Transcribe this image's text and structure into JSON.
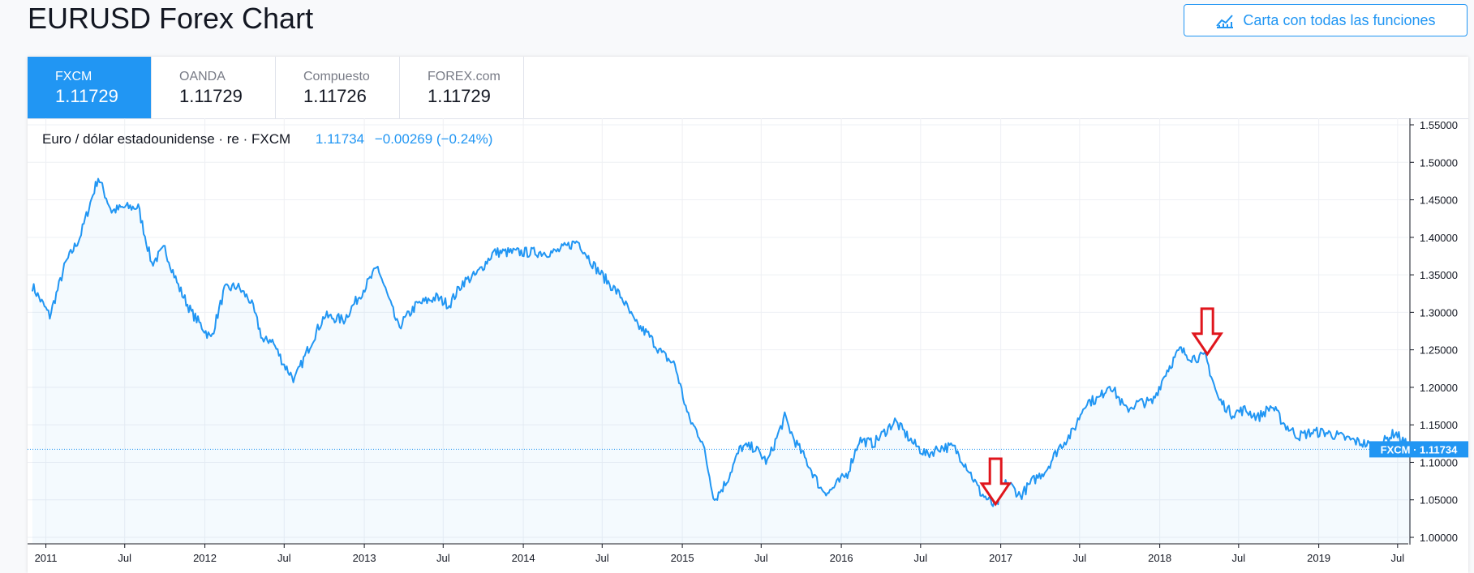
{
  "page": {
    "title": "EURUSD Forex Chart"
  },
  "toolbar": {
    "full_chart_label": "Carta con todas las funciones",
    "full_chart_icon": "chart-line-icon"
  },
  "tabs": [
    {
      "name": "FXCM",
      "value": "1.11729",
      "active": true
    },
    {
      "name": "OANDA",
      "value": "1.11729",
      "active": false
    },
    {
      "name": "Compuesto",
      "value": "1.11726",
      "active": false
    },
    {
      "name": "FOREX.com",
      "value": "1.11729",
      "active": false
    }
  ],
  "legend": {
    "symbol": "Euro / dólar estadounidense · re · FXCM",
    "price": "1.11734",
    "change": "−0.00269 (−0.24%)"
  },
  "colors": {
    "accent": "#2196f3",
    "line": "#2196f3",
    "arrow": "#e0161d",
    "text": "#131722"
  },
  "chart_data": {
    "type": "line",
    "series": [
      {
        "name": "FXCM",
        "x": [
          "2010-12-01",
          "2011-01-10",
          "2011-02-15",
          "2011-03-20",
          "2011-05-01",
          "2011-06-01",
          "2011-07-01",
          "2011-08-01",
          "2011-09-01",
          "2011-10-01",
          "2011-11-01",
          "2011-12-01",
          "2012-01-15",
          "2012-02-15",
          "2012-03-15",
          "2012-04-15",
          "2012-05-15",
          "2012-06-01",
          "2012-07-01",
          "2012-07-25",
          "2012-09-01",
          "2012-10-01",
          "2012-11-15",
          "2013-02-01",
          "2013-03-20",
          "2013-05-01",
          "2013-06-15",
          "2013-07-15",
          "2013-08-15",
          "2013-09-15",
          "2013-10-25",
          "2013-12-27",
          "2014-02-15",
          "2014-03-15",
          "2014-05-06",
          "2014-06-15",
          "2014-07-15",
          "2014-08-15",
          "2014-09-15",
          "2014-10-15",
          "2014-11-15",
          "2014-12-15",
          "2015-01-15",
          "2015-02-15",
          "2015-03-16",
          "2015-04-13",
          "2015-05-15",
          "2015-06-15",
          "2015-07-15",
          "2015-08-24",
          "2015-09-15",
          "2015-10-15",
          "2015-11-15",
          "2015-12-03",
          "2016-01-15",
          "2016-02-11",
          "2016-03-15",
          "2016-05-03",
          "2016-06-15",
          "2016-07-15",
          "2016-08-15",
          "2016-09-15",
          "2016-10-15",
          "2016-11-15",
          "2016-12-20",
          "2017-01-15",
          "2017-02-15",
          "2017-03-15",
          "2017-04-15",
          "2017-05-15",
          "2017-06-15",
          "2017-07-15",
          "2017-08-15",
          "2017-09-08",
          "2017-10-15",
          "2017-11-15",
          "2017-12-15",
          "2018-01-15",
          "2018-02-16",
          "2018-03-15",
          "2018-04-17",
          "2018-05-15",
          "2018-06-15",
          "2018-07-15",
          "2018-08-15",
          "2018-09-15",
          "2018-10-15",
          "2018-11-15",
          "2018-12-15",
          "2019-01-15",
          "2019-02-15",
          "2019-03-15",
          "2019-04-15",
          "2019-05-15",
          "2019-06-25",
          "2019-07-31"
        ],
        "y": [
          1.335,
          1.295,
          1.365,
          1.4,
          1.48,
          1.435,
          1.44,
          1.44,
          1.365,
          1.385,
          1.335,
          1.3,
          1.265,
          1.33,
          1.335,
          1.315,
          1.26,
          1.265,
          1.23,
          1.21,
          1.26,
          1.295,
          1.29,
          1.36,
          1.28,
          1.31,
          1.32,
          1.31,
          1.34,
          1.35,
          1.38,
          1.38,
          1.38,
          1.38,
          1.395,
          1.36,
          1.34,
          1.32,
          1.285,
          1.27,
          1.245,
          1.23,
          1.16,
          1.13,
          1.05,
          1.075,
          1.12,
          1.12,
          1.1,
          1.16,
          1.13,
          1.1,
          1.065,
          1.06,
          1.085,
          1.13,
          1.125,
          1.155,
          1.125,
          1.11,
          1.12,
          1.12,
          1.095,
          1.06,
          1.04,
          1.075,
          1.055,
          1.075,
          1.09,
          1.12,
          1.14,
          1.18,
          1.185,
          1.205,
          1.17,
          1.18,
          1.18,
          1.22,
          1.25,
          1.24,
          1.24,
          1.185,
          1.165,
          1.17,
          1.16,
          1.175,
          1.15,
          1.135,
          1.14,
          1.14,
          1.135,
          1.13,
          1.125,
          1.12,
          1.14,
          1.117
        ]
      }
    ],
    "current_price": 1.11734,
    "price_label": "FXCM",
    "ylim": [
      1.0,
      1.55
    ],
    "yticks": [
      "1.55000",
      "1.50000",
      "1.45000",
      "1.40000",
      "1.35000",
      "1.30000",
      "1.25000",
      "1.20000",
      "1.15000",
      "1.10000",
      "1.05000",
      "1.00000"
    ],
    "xticks": [
      {
        "label": "2011",
        "date": "2011-01-01"
      },
      {
        "label": "Jul",
        "date": "2011-07-01"
      },
      {
        "label": "2012",
        "date": "2012-01-01"
      },
      {
        "label": "Jul",
        "date": "2012-07-01"
      },
      {
        "label": "2013",
        "date": "2013-01-01"
      },
      {
        "label": "Jul",
        "date": "2013-07-01"
      },
      {
        "label": "2014",
        "date": "2014-01-01"
      },
      {
        "label": "Jul",
        "date": "2014-07-01"
      },
      {
        "label": "2015",
        "date": "2015-01-01"
      },
      {
        "label": "Jul",
        "date": "2015-07-01"
      },
      {
        "label": "2016",
        "date": "2016-01-01"
      },
      {
        "label": "Jul",
        "date": "2016-07-01"
      },
      {
        "label": "2017",
        "date": "2017-01-01"
      },
      {
        "label": "Jul",
        "date": "2017-07-01"
      },
      {
        "label": "2018",
        "date": "2018-01-01"
      },
      {
        "label": "Jul",
        "date": "2018-07-01"
      },
      {
        "label": "2019",
        "date": "2019-01-01"
      },
      {
        "label": "Jul",
        "date": "2019-07-01"
      }
    ],
    "annotations": [
      {
        "type": "down-arrow",
        "date": "2016-12-20",
        "value": 1.04
      },
      {
        "type": "down-arrow",
        "date": "2018-04-20",
        "value": 1.24
      }
    ],
    "grid": true,
    "title": "",
    "xlabel": "",
    "ylabel": ""
  }
}
